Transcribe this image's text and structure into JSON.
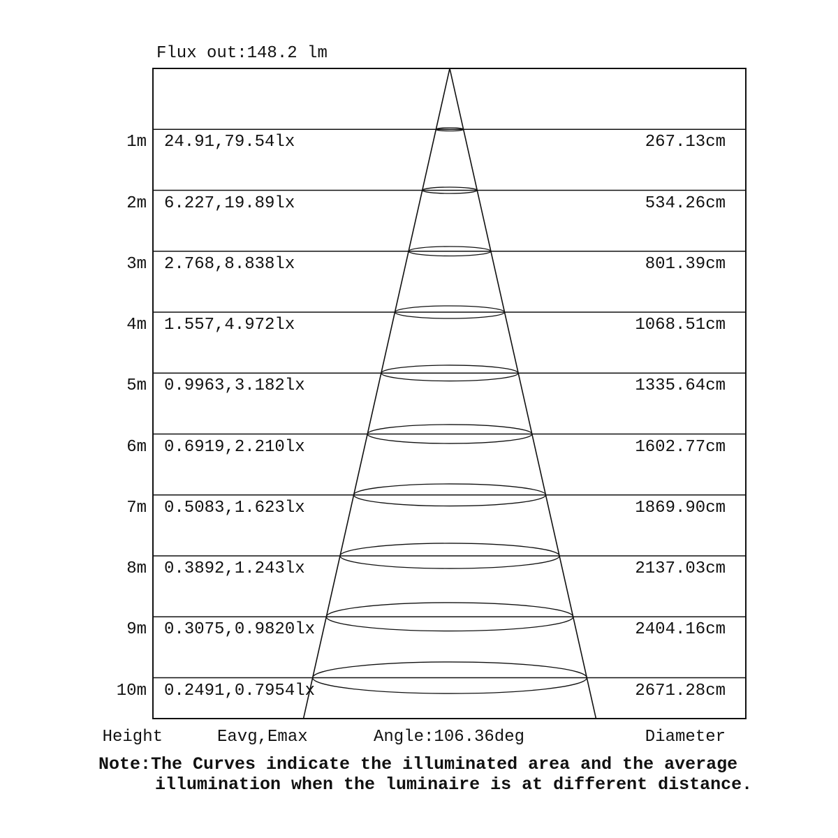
{
  "title": "Flux out:148.2 lm",
  "footer": {
    "height_label": "Height",
    "eavg_label": "Eavg,Emax",
    "angle_label": "Angle:106.36deg",
    "diameter_label": "Diameter"
  },
  "note": {
    "line1": "Note:The Curves indicate the illuminated area and the average",
    "line2": "illumination when the luminaire is at different distance."
  },
  "colors": {
    "background": "#ffffff",
    "line": "#111111",
    "text": "#111111"
  },
  "chart_data": {
    "type": "table",
    "title": "Flux out:148.2 lm",
    "flux_lumens": 148.2,
    "beam_angle_deg": 106.36,
    "columns": [
      "Height",
      "Eavg,Emax",
      "Diameter"
    ],
    "rows": [
      {
        "height": "1m",
        "eavg_emax": "24.91,79.54lx",
        "diameter": "267.13cm"
      },
      {
        "height": "2m",
        "eavg_emax": "6.227,19.89lx",
        "diameter": "534.26cm"
      },
      {
        "height": "3m",
        "eavg_emax": "2.768,8.838lx",
        "diameter": "801.39cm"
      },
      {
        "height": "4m",
        "eavg_emax": "1.557,4.972lx",
        "diameter": "1068.51cm"
      },
      {
        "height": "5m",
        "eavg_emax": "0.9963,3.182lx",
        "diameter": "1335.64cm"
      },
      {
        "height": "6m",
        "eavg_emax": "0.6919,2.210lx",
        "diameter": "1602.77cm"
      },
      {
        "height": "7m",
        "eavg_emax": "0.5083,1.623lx",
        "diameter": "1869.90cm"
      },
      {
        "height": "8m",
        "eavg_emax": "0.3892,1.243lx",
        "diameter": "2137.03cm"
      },
      {
        "height": "9m",
        "eavg_emax": "0.3075,0.9820lx",
        "diameter": "2404.16cm"
      },
      {
        "height": "10m",
        "eavg_emax": "0.2491,0.7954lx",
        "diameter": "2671.28cm"
      }
    ],
    "note": "Note:The Curves indicate the illuminated area and the average illumination when the luminaire is at different distance."
  }
}
